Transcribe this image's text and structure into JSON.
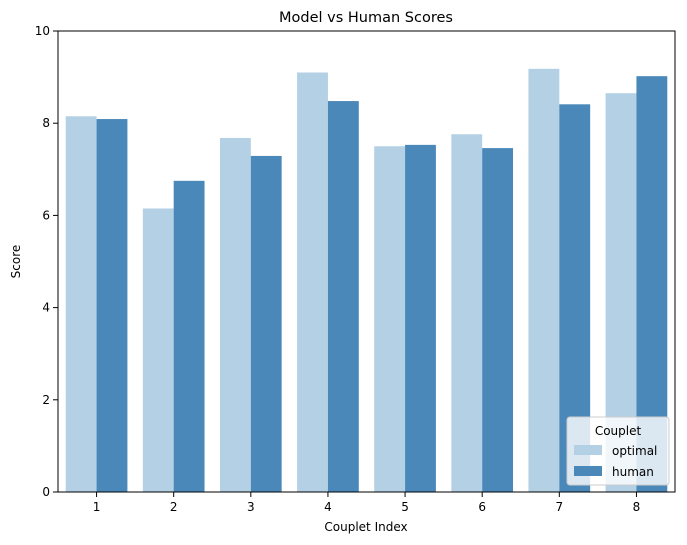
{
  "chart_data": {
    "type": "bar",
    "title": "Model vs Human Scores",
    "xlabel": "Couplet Index",
    "ylabel": "Score",
    "categories": [
      "1",
      "2",
      "3",
      "4",
      "5",
      "6",
      "7",
      "8"
    ],
    "ylim": [
      0,
      10
    ],
    "yticks": [
      "0",
      "2",
      "4",
      "6",
      "8",
      "10"
    ],
    "series": [
      {
        "name": "optimal",
        "color": "#b3d0e4",
        "values": [
          8.15,
          6.15,
          7.68,
          9.1,
          7.5,
          7.76,
          9.18,
          8.65
        ]
      },
      {
        "name": "human",
        "color": "#4a88ba",
        "values": [
          8.09,
          6.75,
          7.29,
          8.48,
          7.53,
          7.46,
          8.41,
          9.02
        ]
      }
    ],
    "grid": false,
    "legend": {
      "title": "Couplet",
      "placement": "lower-right"
    }
  }
}
